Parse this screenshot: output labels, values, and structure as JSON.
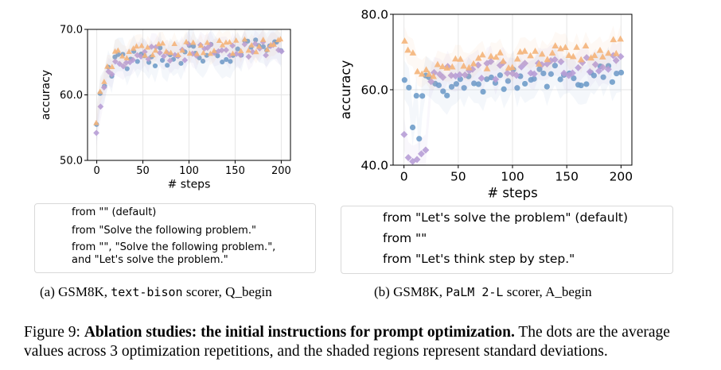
{
  "chart_data": [
    {
      "type": "scatter",
      "panel": "a",
      "xlabel": "# steps",
      "ylabel": "accuracy",
      "xlim": [
        -10,
        210
      ],
      "ylim": [
        50,
        70
      ],
      "xticks": [
        0,
        50,
        100,
        150,
        200
      ],
      "xtick_labels": [
        "0",
        "50",
        "100",
        "150",
        "200"
      ],
      "yticks": [
        50,
        60,
        70
      ],
      "ytick_labels": [
        "50.0",
        "60.0",
        "70.0"
      ],
      "grid": true,
      "shaded_std_band": true,
      "series": [
        {
          "name": "from \"\" (default)",
          "marker": "circle",
          "color": "#6f9cc9",
          "start": 55.0,
          "plateau": 65.5,
          "trend": 1.5,
          "noise": 1.6
        },
        {
          "name": "from \"Solve the following problem.\"",
          "marker": "diamond",
          "color": "#b79dd6",
          "start": 53.3,
          "plateau": 65.8,
          "trend": 1.4,
          "noise": 1.3
        },
        {
          "name": "from \"\", \"Solve the following problem.\",\nand \"Let's solve the problem.\"",
          "marker": "triangle",
          "color": "#f4b47a",
          "start": 56.5,
          "plateau": 66.3,
          "trend": 1.5,
          "noise": 1.1
        }
      ]
    },
    {
      "type": "scatter",
      "panel": "b",
      "xlabel": "# steps",
      "ylabel": "accuracy",
      "xlim": [
        -10,
        210
      ],
      "ylim": [
        40,
        80
      ],
      "xticks": [
        0,
        50,
        100,
        150,
        200
      ],
      "xtick_labels": [
        "0",
        "50",
        "100",
        "150",
        "200"
      ],
      "yticks": [
        40,
        60,
        80
      ],
      "ytick_labels": [
        "40.0",
        "60.0",
        "80.0"
      ],
      "grid": true,
      "shaded_std_band": true,
      "series": [
        {
          "name": "from \"Let's solve the problem\" (default)",
          "marker": "circle",
          "color": "#6f9cc9",
          "start": 60.0,
          "plateau": 60.5,
          "trend": 4.5,
          "noise": 3.2,
          "dip": [
            {
              "x": 8,
              "y": 50
            },
            {
              "x": 14,
              "y": 47
            }
          ]
        },
        {
          "name": "from \"\"",
          "marker": "diamond",
          "color": "#b79dd6",
          "start": 46.0,
          "plateau": 63.5,
          "trend": 3.5,
          "noise": 2.6,
          "dip": [
            {
              "x": 4,
              "y": 42
            },
            {
              "x": 8,
              "y": 41
            },
            {
              "x": 12,
              "y": 41.5
            },
            {
              "x": 16,
              "y": 43
            },
            {
              "x": 20,
              "y": 44
            }
          ]
        },
        {
          "name": "from \"Let's think step by step.\"",
          "marker": "triangle",
          "color": "#f4b47a",
          "start": 72.0,
          "plateau": 64.5,
          "trend": 7.0,
          "noise": 2.3
        }
      ]
    }
  ],
  "subcaption_a": {
    "label": "(a) GSM8K, ",
    "mono": "text-bison",
    "rest": " scorer, Q_begin"
  },
  "subcaption_b": {
    "label": "(b) GSM8K, ",
    "mono": "PaLM 2-L",
    "rest": " scorer, A_begin"
  },
  "figure_caption": {
    "label": "Figure 9: ",
    "bold": "Ablation studies: the initial instructions for prompt optimization.",
    "rest": " The dots are the average values across 3 optimization repetitions, and the shaded regions represent standard deviations."
  }
}
